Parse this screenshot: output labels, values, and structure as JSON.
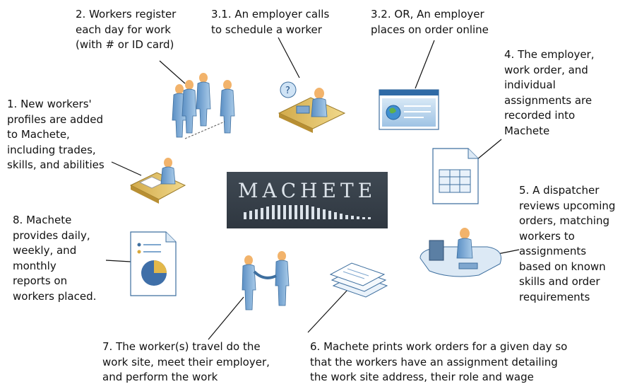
{
  "logo": {
    "text": "MACHETE"
  },
  "steps": {
    "s1": "1. New workers'\nprofiles are added\nto Machete,\nincluding trades,\nskills, and abilities",
    "s2": "2. Workers register\neach day for work\n(with # or ID card)",
    "s31": "3.1. An employer calls\nto schedule a worker",
    "s32": "3.2. OR, An employer\nplaces on order online",
    "s4": "4. The employer,\nwork order, and\nindividual\nassignments are\nrecorded into\nMachete",
    "s5": "5. A dispatcher\nreviews upcoming\norders, matching\nworkers to\nassignments\nbased on known\nskills and order\nrequirements",
    "s6": "6. Machete prints work orders for a given day so\nthat the workers have an assignment detailing\nthe work site address, their role and wage",
    "s7": "7. The worker(s) travel do the\nwork site, meet their employer,\nand perform the work",
    "s8": "8. Machete\nprovides daily,\nweekly, and\nmonthly\nreports on\nworkers placed."
  },
  "icons": [
    "desk-worker-icon",
    "worker-group-icon",
    "phone-employer-icon",
    "web-order-icon",
    "spreadsheet-document-icon",
    "dispatcher-desk-icon",
    "printed-orders-icon",
    "handshake-icon",
    "report-document-icon"
  ],
  "colors": {
    "figure": "#8fb8e0",
    "figure_dark": "#3e6f9f",
    "head": "#f2b36b",
    "desk": "#e3c46a",
    "logo_bg": "#39424c",
    "logo_text": "#dce3ea"
  }
}
